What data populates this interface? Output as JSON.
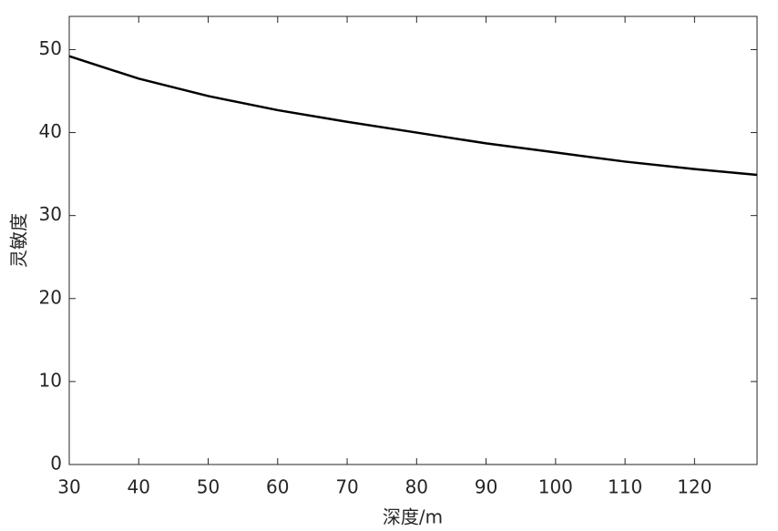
{
  "chart_data": {
    "type": "line",
    "xlabel": "深度/m",
    "ylabel": "灵敏度",
    "x": [
      30,
      40,
      50,
      60,
      70,
      80,
      90,
      100,
      110,
      120,
      129
    ],
    "series": [
      {
        "color": "#000000",
        "values": [
          49.2,
          46.5,
          44.4,
          42.7,
          41.3,
          40.0,
          38.7,
          37.6,
          36.5,
          35.6,
          34.9
        ]
      }
    ],
    "xlim": [
      30,
      129
    ],
    "xticks": [
      30,
      40,
      50,
      60,
      70,
      80,
      90,
      100,
      110,
      120
    ],
    "ylim": [
      0,
      54
    ],
    "yticks": [
      0,
      10,
      20,
      30,
      40,
      50
    ],
    "grid": false,
    "box": true
  }
}
